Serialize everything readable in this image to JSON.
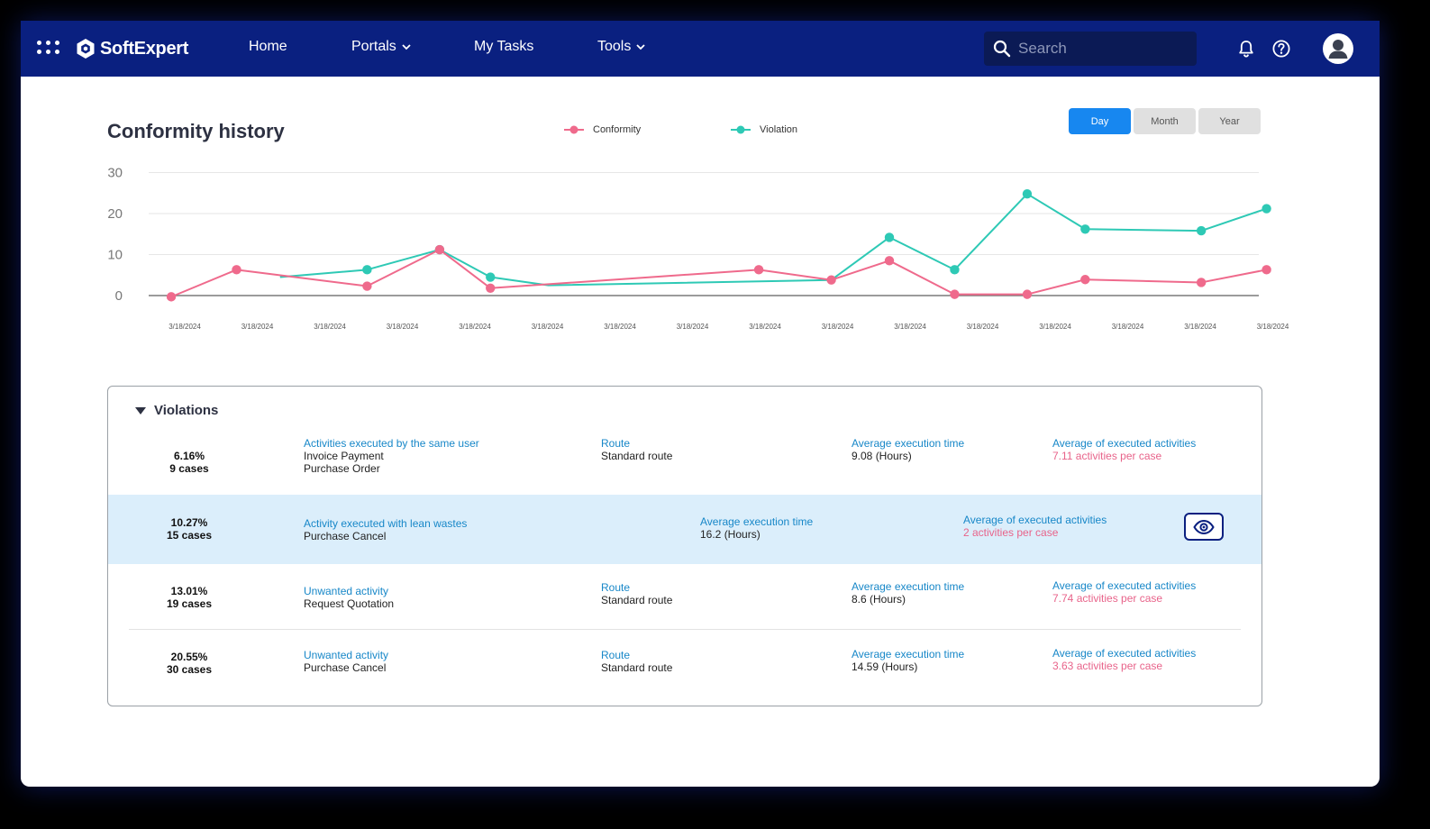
{
  "nav": {
    "brand": "SoftExpert",
    "items": {
      "home": "Home",
      "portals": "Portals",
      "my_tasks": "My Tasks",
      "tools": "Tools"
    },
    "search": {
      "placeholder": "Search"
    }
  },
  "chart_section": {
    "title": "Conformity history",
    "range_buttons": {
      "day": "Day",
      "month": "Month",
      "year": "Year"
    },
    "active_range": "Day"
  },
  "colors": {
    "nav_bg": "#0a2080",
    "conformity": "#ef6a8c",
    "violation": "#2ec9b5",
    "accent": "#1787f0",
    "link_blue": "#1787c8",
    "highlight_row": "#dbeefb"
  },
  "chart_data": {
    "type": "line",
    "title": "Conformity history",
    "x": [
      "3/18/2024",
      "3/18/2024",
      "3/18/2024",
      "3/18/2024",
      "3/18/2024",
      "3/18/2024",
      "3/18/2024",
      "3/18/2024",
      "3/18/2024",
      "3/18/2024",
      "3/18/2024",
      "3/18/2024",
      "3/18/2024",
      "3/18/2024",
      "3/18/2024",
      "3/18/2024"
    ],
    "yticks": [
      0,
      10,
      20,
      30
    ],
    "ylim": [
      0,
      30
    ],
    "grid": true,
    "legend": "top-center",
    "series": [
      {
        "name": "Conformity",
        "points": [
          {
            "x": 0.1,
            "y": -0.3
          },
          {
            "x": 1.0,
            "y": 6.3
          },
          {
            "x": 2.8,
            "y": 2.3
          },
          {
            "x": 3.8,
            "y": 11.2
          },
          {
            "x": 4.5,
            "y": 1.8
          },
          {
            "x": 8.2,
            "y": 6.3
          },
          {
            "x": 9.2,
            "y": 3.8
          },
          {
            "x": 10.0,
            "y": 8.5
          },
          {
            "x": 10.9,
            "y": 0.3
          },
          {
            "x": 11.9,
            "y": 0.3
          },
          {
            "x": 12.7,
            "y": 3.9
          },
          {
            "x": 14.3,
            "y": 3.2
          },
          {
            "x": 15.2,
            "y": 6.3
          }
        ]
      },
      {
        "name": "Violation",
        "points": [
          {
            "x": 2.8,
            "y": 6.3
          },
          {
            "x": 3.8,
            "y": 11.2
          },
          {
            "x": 4.5,
            "y": 4.5
          },
          {
            "x": 10.0,
            "y": 14.2
          },
          {
            "x": 10.9,
            "y": 6.3
          },
          {
            "x": 11.9,
            "y": 24.8
          },
          {
            "x": 12.7,
            "y": 16.2
          },
          {
            "x": 14.3,
            "y": 15.8
          },
          {
            "x": 15.2,
            "y": 21.2
          }
        ],
        "line_points": [
          {
            "x": 1.6,
            "y": 4.5
          },
          {
            "x": 2.8,
            "y": 6.3
          },
          {
            "x": 3.8,
            "y": 11.2
          },
          {
            "x": 4.5,
            "y": 4.5
          },
          {
            "x": 5.3,
            "y": 2.5
          },
          {
            "x": 9.2,
            "y": 3.8
          },
          {
            "x": 10.0,
            "y": 14.2
          },
          {
            "x": 10.9,
            "y": 6.3
          },
          {
            "x": 11.9,
            "y": 24.8
          },
          {
            "x": 12.7,
            "y": 16.2
          },
          {
            "x": 14.3,
            "y": 15.8
          },
          {
            "x": 15.2,
            "y": 21.2
          }
        ]
      }
    ]
  },
  "violations": {
    "title": "Violations",
    "rows": [
      {
        "percent": "6.16%",
        "cases": "9 cases",
        "activity_label": "Activities executed by the same user",
        "activity_values": [
          "Invoice Payment",
          "Purchase Order"
        ],
        "route_label": "Route",
        "route_value": "Standard route",
        "time_label": "Average execution time",
        "time_value": "9.08 (Hours)",
        "avg_label": "Average of executed activities",
        "avg_value": "7.11 activities per case"
      },
      {
        "percent": "10.27%",
        "cases": "15 cases",
        "activity_label": "Activity executed with lean wastes",
        "activity_values": [
          "Purchase Cancel"
        ],
        "time_label": "Average execution time",
        "time_value": "16.2 (Hours)",
        "avg_label": "Average of executed activities",
        "avg_value": "2 activities per case"
      },
      {
        "percent": "13.01%",
        "cases": "19 cases",
        "activity_label": "Unwanted activity",
        "activity_values": [
          "Request Quotation"
        ],
        "route_label": "Route",
        "route_value": "Standard route",
        "time_label": "Average execution time",
        "time_value": "8.6 (Hours)",
        "avg_label": "Average of executed activities",
        "avg_value": "7.74 activities per case"
      },
      {
        "percent": "20.55%",
        "cases": "30 cases",
        "activity_label": "Unwanted activity",
        "activity_values": [
          "Purchase Cancel"
        ],
        "route_label": "Route",
        "route_value": "Standard route",
        "time_label": "Average execution time",
        "time_value": "14.59 (Hours)",
        "avg_label": "Average of executed activities",
        "avg_value": "3.63 activities per case"
      }
    ]
  }
}
